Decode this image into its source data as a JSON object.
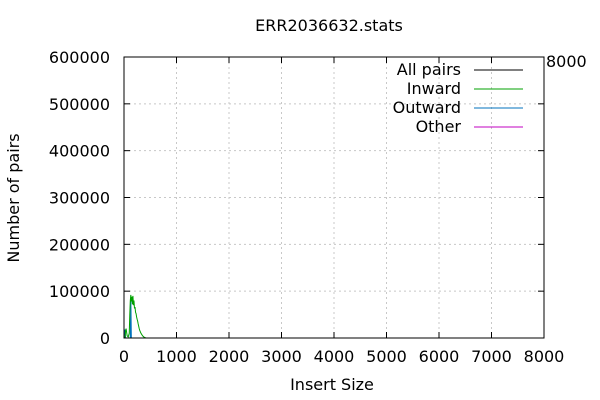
{
  "chart_data": {
    "type": "line",
    "title": "ERR2036632.stats",
    "xlabel": "Insert Size",
    "ylabel": "Number of pairs",
    "xlim": [
      0,
      8000
    ],
    "ylim": [
      0,
      600000
    ],
    "x_ticks": [
      0,
      1000,
      2000,
      3000,
      4000,
      5000,
      6000,
      7000,
      8000
    ],
    "y_ticks": [
      0,
      100000,
      200000,
      300000,
      400000,
      500000,
      600000
    ],
    "x_tick_labels": [
      "0",
      "1000",
      "2000",
      "3000",
      "4000",
      "5000",
      "6000",
      "7000",
      "8000"
    ],
    "y_tick_labels": [
      "0",
      "100000",
      "200000",
      "300000",
      "400000",
      "500000",
      "600000"
    ],
    "grid": true,
    "legend_position": "top-right",
    "corner_label": "8000",
    "series": [
      {
        "name": "All pairs",
        "color": "#000000",
        "points": [
          [
            0,
            0
          ],
          [
            130,
            0
          ],
          [
            150,
            0
          ],
          [
            200,
            0
          ],
          [
            400,
            0
          ]
        ]
      },
      {
        "name": "Inward",
        "color": "#00a000",
        "points": [
          [
            0,
            0
          ],
          [
            20,
            2000
          ],
          [
            30,
            15000
          ],
          [
            40,
            20000
          ],
          [
            50,
            12000
          ],
          [
            60,
            5000
          ],
          [
            80,
            2000
          ],
          [
            100,
            10000
          ],
          [
            110,
            50000
          ],
          [
            120,
            80000
          ],
          [
            130,
            92000
          ],
          [
            140,
            78000
          ],
          [
            150,
            88000
          ],
          [
            160,
            72000
          ],
          [
            170,
            90000
          ],
          [
            180,
            70000
          ],
          [
            190,
            80000
          ],
          [
            200,
            63000
          ],
          [
            210,
            66000
          ],
          [
            220,
            55000
          ],
          [
            230,
            52000
          ],
          [
            240,
            45000
          ],
          [
            250,
            40000
          ],
          [
            260,
            36000
          ],
          [
            270,
            30000
          ],
          [
            280,
            25000
          ],
          [
            290,
            20000
          ],
          [
            300,
            16000
          ],
          [
            320,
            11000
          ],
          [
            340,
            7000
          ],
          [
            360,
            4000
          ],
          [
            380,
            2000
          ],
          [
            400,
            1000
          ],
          [
            420,
            0
          ]
        ]
      },
      {
        "name": "Outward",
        "color": "#0072bd",
        "points": [
          [
            0,
            0
          ],
          [
            20,
            18000
          ],
          [
            30,
            0
          ],
          [
            120,
            0
          ],
          [
            130,
            85000
          ],
          [
            140,
            0
          ]
        ]
      },
      {
        "name": "Other",
        "color": "#c000c0",
        "points": [
          [
            0,
            0
          ],
          [
            400,
            0
          ]
        ]
      }
    ]
  }
}
